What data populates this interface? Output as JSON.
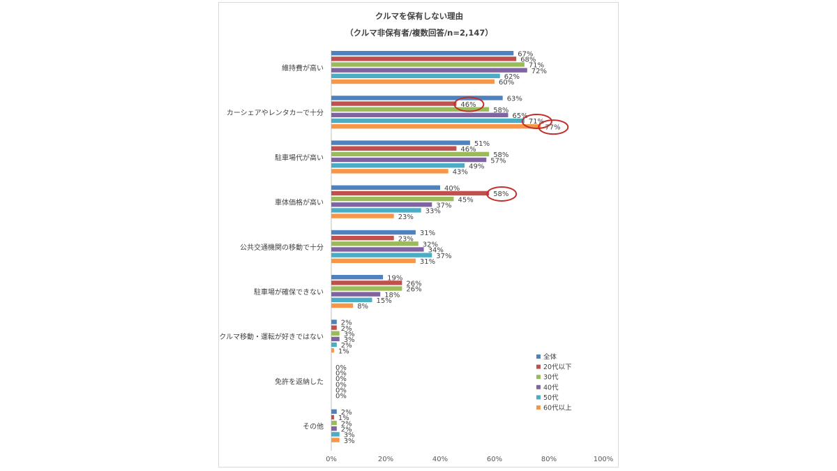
{
  "chart_data": {
    "type": "bar",
    "orientation": "horizontal",
    "title": "クルマを保有しない理由",
    "subtitle": "（クルマ非保有者/複数回答/n=2,147）",
    "categories": [
      "維持費が高い",
      "カーシェアやレンタカーで十分",
      "駐車場代が高い",
      "車体価格が高い",
      "公共交通機関の移動で十分",
      "駐車場が確保できない",
      "クルマ移動・運転が好きではない",
      "免許を返納した",
      "その他"
    ],
    "series": [
      {
        "name": "全体",
        "color": "#4f81bd",
        "values": [
          67,
          63,
          51,
          40,
          31,
          19,
          2,
          0,
          2
        ]
      },
      {
        "name": "20代以下",
        "color": "#c0504d",
        "values": [
          68,
          46,
          46,
          58,
          23,
          26,
          2,
          0,
          1
        ]
      },
      {
        "name": "30代",
        "color": "#9bbb59",
        "values": [
          71,
          58,
          58,
          45,
          32,
          26,
          3,
          0,
          2
        ]
      },
      {
        "name": "40代",
        "color": "#8064a2",
        "values": [
          72,
          65,
          57,
          37,
          34,
          18,
          3,
          0,
          2
        ]
      },
      {
        "name": "50代",
        "color": "#4bacc6",
        "values": [
          62,
          71,
          49,
          33,
          37,
          15,
          2,
          0,
          3
        ]
      },
      {
        "name": "60代以上",
        "color": "#f79646",
        "values": [
          60,
          77,
          43,
          23,
          31,
          8,
          1,
          0,
          3
        ]
      }
    ],
    "value_format": "{v}%",
    "xlim": [
      0,
      100
    ],
    "xticks": [
      "0%",
      "20%",
      "40%",
      "60%",
      "80%",
      "100%"
    ],
    "grid": false,
    "legend_position": "bottom-right",
    "highlight_color": "#c0302b",
    "highlights": [
      {
        "category": "カーシェアやレンタカーで十分",
        "series": "20代以下"
      },
      {
        "category": "カーシェアやレンタカーで十分",
        "series": "50代"
      },
      {
        "category": "カーシェアやレンタカーで十分",
        "series": "60代以上"
      },
      {
        "category": "車体価格が高い",
        "series": "20代以下"
      }
    ]
  }
}
